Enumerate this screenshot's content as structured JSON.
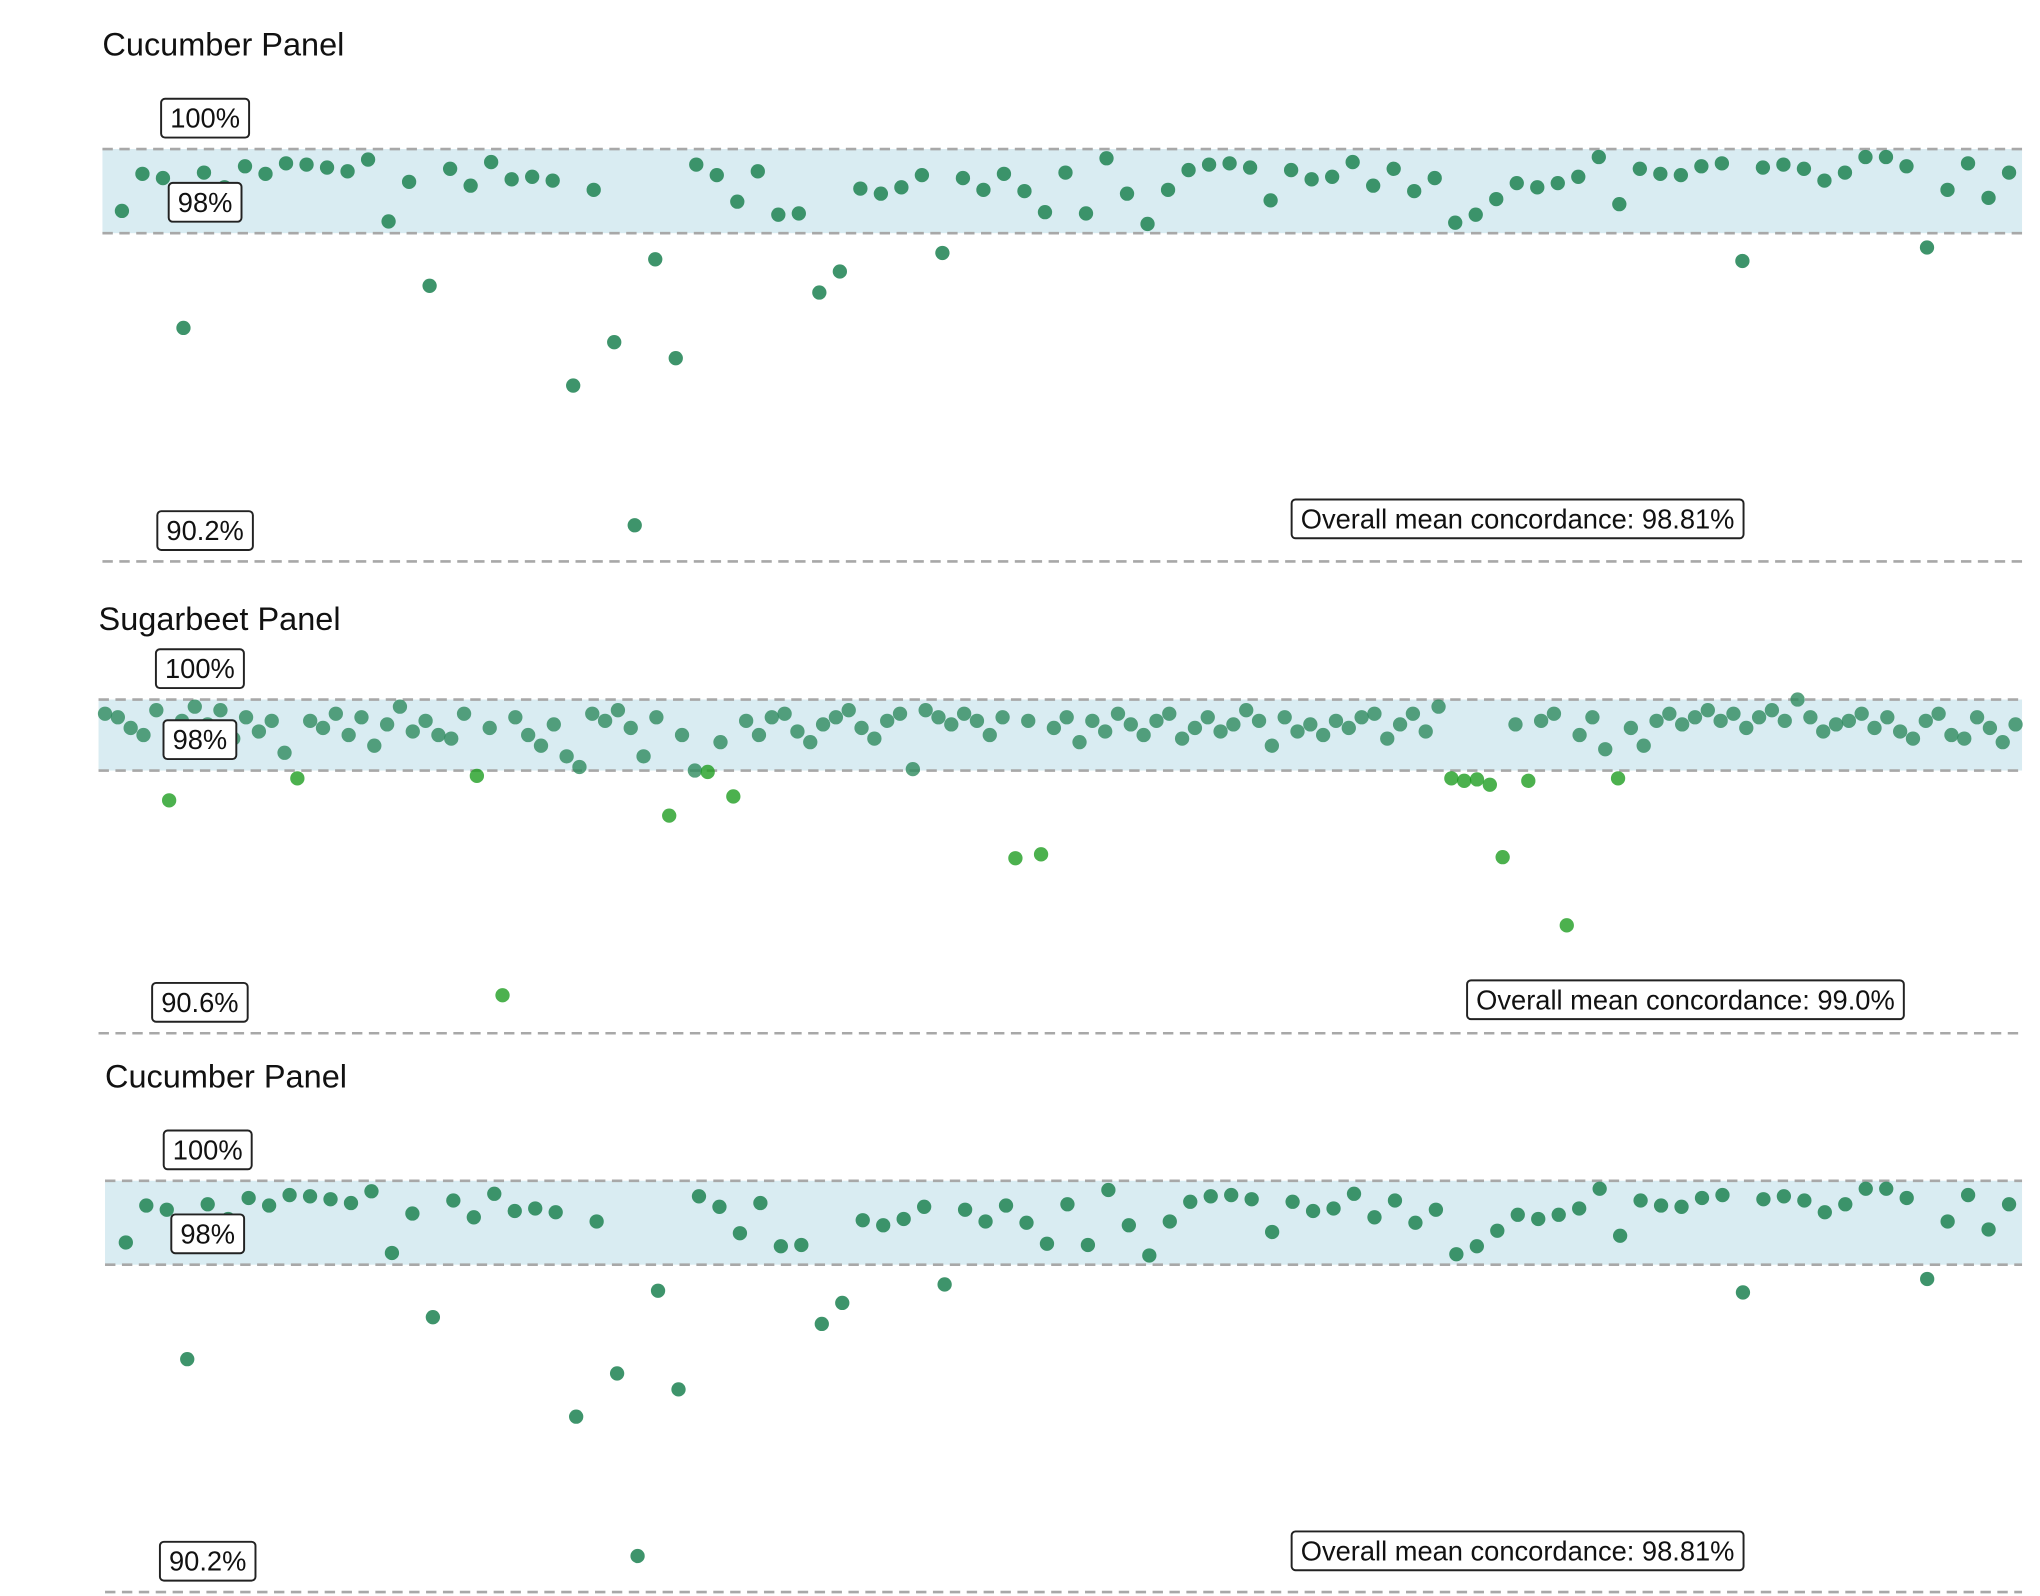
{
  "chart_data": [
    {
      "type": "scatter",
      "title": "Cucumber Panel",
      "color": "#2e8b5e",
      "band_color": "#d9ecf2",
      "ylim": [
        90.2,
        101.75
      ],
      "reference_lines": [
        {
          "value": 100,
          "label": "100%"
        },
        {
          "value": 98,
          "label": "98%"
        },
        {
          "value": 90.2,
          "label": "90.2%"
        }
      ],
      "annotation": "Overall mean concordance: 98.81%",
      "values": [
        98.53,
        99.41,
        99.31,
        95.75,
        99.44,
        99.09,
        99.59,
        99.41,
        99.66,
        99.63,
        99.56,
        99.47,
        99.75,
        98.28,
        99.22,
        96.75,
        99.53,
        99.13,
        99.69,
        99.28,
        99.34,
        99.25,
        94.38,
        99.03,
        95.41,
        91.06,
        97.38,
        95.03,
        99.63,
        99.38,
        98.75,
        99.47,
        98.44,
        98.47,
        96.59,
        97.09,
        99.06,
        98.94,
        99.09,
        99.38,
        97.53,
        99.31,
        99.03,
        99.41,
        99.0,
        98.5,
        99.44,
        98.47,
        99.78,
        98.94,
        98.22,
        99.03,
        99.5,
        99.63,
        99.66,
        99.56,
        98.78,
        99.5,
        99.28,
        99.34,
        99.69,
        99.13,
        99.53,
        99.0,
        99.31,
        98.25,
        98.44,
        98.81,
        99.19,
        99.09,
        99.19,
        99.34,
        99.81,
        98.69,
        99.53,
        99.41,
        99.38,
        99.59,
        99.66,
        97.34,
        99.56,
        99.63,
        99.53,
        99.25,
        99.44,
        99.81,
        99.81,
        99.59,
        97.66,
        99.03,
        99.66,
        98.84,
        99.44
      ]
    },
    {
      "type": "scatter",
      "title": "Sugarbeet Panel",
      "color": "#2e8b5e",
      "below_color": "#1f9e22",
      "band_color": "#d9ecf2",
      "ylim": [
        90.6,
        101.4
      ],
      "reference_lines": [
        {
          "value": 100,
          "label": "100%"
        },
        {
          "value": 98,
          "label": "98%"
        },
        {
          "value": 90.6,
          "label": "90.6%"
        }
      ],
      "annotation": "Overall mean concordance: 99.0%",
      "values": [
        99.6,
        99.5,
        99.2,
        99.0,
        99.7,
        97.16,
        99.4,
        99.8,
        99.3,
        99.7,
        98.9,
        99.5,
        99.1,
        99.4,
        98.5,
        97.78,
        99.4,
        99.2,
        99.6,
        99.0,
        99.5,
        98.7,
        99.3,
        99.8,
        99.1,
        99.4,
        99.0,
        98.9,
        99.6,
        97.85,
        99.2,
        91.67,
        99.5,
        99.0,
        98.7,
        99.3,
        98.4,
        98.1,
        99.6,
        99.4,
        99.7,
        99.2,
        98.4,
        99.5,
        96.73,
        99.0,
        98.0,
        97.96,
        98.8,
        97.27,
        99.4,
        99.0,
        99.5,
        99.6,
        99.1,
        98.8,
        99.3,
        99.5,
        99.7,
        99.2,
        98.9,
        99.4,
        99.6,
        98.04,
        99.7,
        99.5,
        99.3,
        99.6,
        99.4,
        99.0,
        99.5,
        95.53,
        99.4,
        95.64,
        99.2,
        99.5,
        98.8,
        99.4,
        99.1,
        99.6,
        99.3,
        99.0,
        99.4,
        99.6,
        98.9,
        99.2,
        99.5,
        99.1,
        99.3,
        99.7,
        99.4,
        98.7,
        99.5,
        99.1,
        99.3,
        99.0,
        99.4,
        99.2,
        99.5,
        99.6,
        98.9,
        99.3,
        99.6,
        99.1,
        99.8,
        97.78,
        97.71,
        97.75,
        97.6,
        95.56,
        99.3,
        97.71,
        99.4,
        99.6,
        93.64,
        99.0,
        99.5,
        98.6,
        97.78,
        99.2,
        98.7,
        99.4,
        99.6,
        99.3,
        99.5,
        99.7,
        99.4,
        99.6,
        99.2,
        99.5,
        99.7,
        99.4,
        100.0,
        99.5,
        99.1,
        99.3,
        99.4,
        99.6,
        99.2,
        99.5,
        99.1,
        98.9,
        99.4,
        99.6,
        99.0,
        98.9,
        99.5,
        99.2,
        98.8,
        99.3
      ]
    },
    {
      "type": "scatter",
      "title": "Cucumber Panel",
      "color": "#2e8b5e",
      "band_color": "#d9ecf2",
      "ylim": [
        90.2,
        101.75
      ],
      "reference_lines": [
        {
          "value": 100,
          "label": "100%"
        },
        {
          "value": 98,
          "label": "98%"
        },
        {
          "value": 90.2,
          "label": "90.2%"
        }
      ],
      "annotation": "Overall mean concordance: 98.81%",
      "values": [
        98.53,
        99.41,
        99.31,
        95.75,
        99.44,
        99.09,
        99.59,
        99.41,
        99.66,
        99.63,
        99.56,
        99.47,
        99.75,
        98.28,
        99.22,
        96.75,
        99.53,
        99.13,
        99.69,
        99.28,
        99.34,
        99.25,
        94.38,
        99.03,
        95.41,
        91.06,
        97.38,
        95.03,
        99.63,
        99.38,
        98.75,
        99.47,
        98.44,
        98.47,
        96.59,
        97.09,
        99.06,
        98.94,
        99.09,
        99.38,
        97.53,
        99.31,
        99.03,
        99.41,
        99.0,
        98.5,
        99.44,
        98.47,
        99.78,
        98.94,
        98.22,
        99.03,
        99.5,
        99.63,
        99.66,
        99.56,
        98.78,
        99.5,
        99.28,
        99.34,
        99.69,
        99.13,
        99.53,
        99.0,
        99.31,
        98.25,
        98.44,
        98.81,
        99.19,
        99.09,
        99.19,
        99.34,
        99.81,
        98.69,
        99.53,
        99.41,
        99.38,
        99.59,
        99.66,
        97.34,
        99.56,
        99.63,
        99.53,
        99.25,
        99.44,
        99.81,
        99.81,
        99.59,
        97.66,
        99.03,
        99.66,
        98.84,
        99.44
      ]
    }
  ]
}
